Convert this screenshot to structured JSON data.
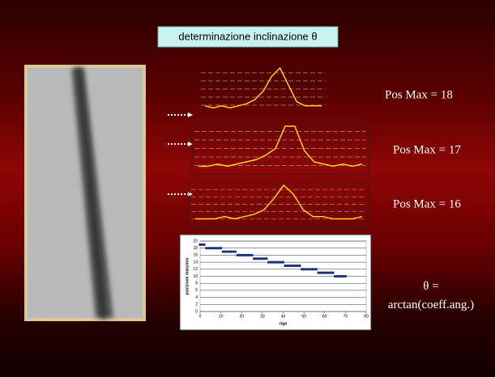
{
  "title": "determinazione inclinazione θ",
  "profiles": [
    {
      "label": "Pos Max = 18",
      "values": [
        2,
        1,
        2,
        1,
        2,
        3,
        5,
        9,
        16,
        20,
        12,
        4,
        2,
        2,
        2
      ]
    },
    {
      "label": "Pos Max = 17",
      "values": [
        2,
        2,
        3,
        2,
        3,
        4,
        5,
        7,
        10,
        20,
        20,
        9,
        4,
        3,
        2,
        3,
        2,
        3
      ]
    },
    {
      "label": "Pos Max = 16",
      "values": [
        2,
        2,
        2,
        3,
        2,
        3,
        4,
        6,
        11,
        17,
        13,
        6,
        3,
        3,
        2,
        2,
        2,
        3
      ]
    }
  ],
  "note": [
    "θ =",
    "arctan(coeff.ang.)"
  ],
  "chart_data": {
    "type": "scatter",
    "xlabel": "riga",
    "ylabel": "posizione massimo",
    "x": [
      0,
      1,
      2,
      3,
      4,
      5,
      6,
      7,
      8,
      9,
      10,
      11,
      12,
      13,
      14,
      15,
      16,
      17,
      18,
      19,
      20,
      21,
      22,
      23,
      24,
      25,
      26,
      27,
      28,
      29,
      30,
      31,
      32,
      33,
      34,
      35,
      36,
      37,
      38,
      39,
      40,
      41,
      42,
      43,
      44,
      45,
      46,
      47,
      48,
      49,
      50,
      51,
      52,
      53,
      54,
      55,
      56,
      57,
      58,
      59,
      60,
      61,
      62,
      63,
      64,
      65,
      66,
      67,
      68,
      69,
      70
    ],
    "y": [
      19,
      19,
      19,
      18,
      18,
      18,
      18,
      18,
      18,
      18,
      18,
      17,
      17,
      17,
      17,
      17,
      17,
      17,
      16,
      16,
      16,
      16,
      16,
      16,
      16,
      16,
      15,
      15,
      15,
      15,
      15,
      15,
      15,
      14,
      14,
      14,
      14,
      14,
      14,
      14,
      14,
      13,
      13,
      13,
      13,
      13,
      13,
      13,
      13,
      12,
      12,
      12,
      12,
      12,
      12,
      12,
      12,
      11,
      11,
      11,
      11,
      11,
      11,
      11,
      11,
      10,
      10,
      10,
      10,
      10,
      10
    ],
    "color": "#1f2f7a",
    "xlim": [
      0,
      80
    ],
    "ylim": [
      0,
      20
    ],
    "xticks": [
      0,
      10,
      20,
      30,
      40,
      50,
      60,
      70,
      80
    ],
    "yticks": [
      0,
      2,
      4,
      6,
      8,
      10,
      12,
      14,
      16,
      18,
      20
    ],
    "grid": true
  }
}
